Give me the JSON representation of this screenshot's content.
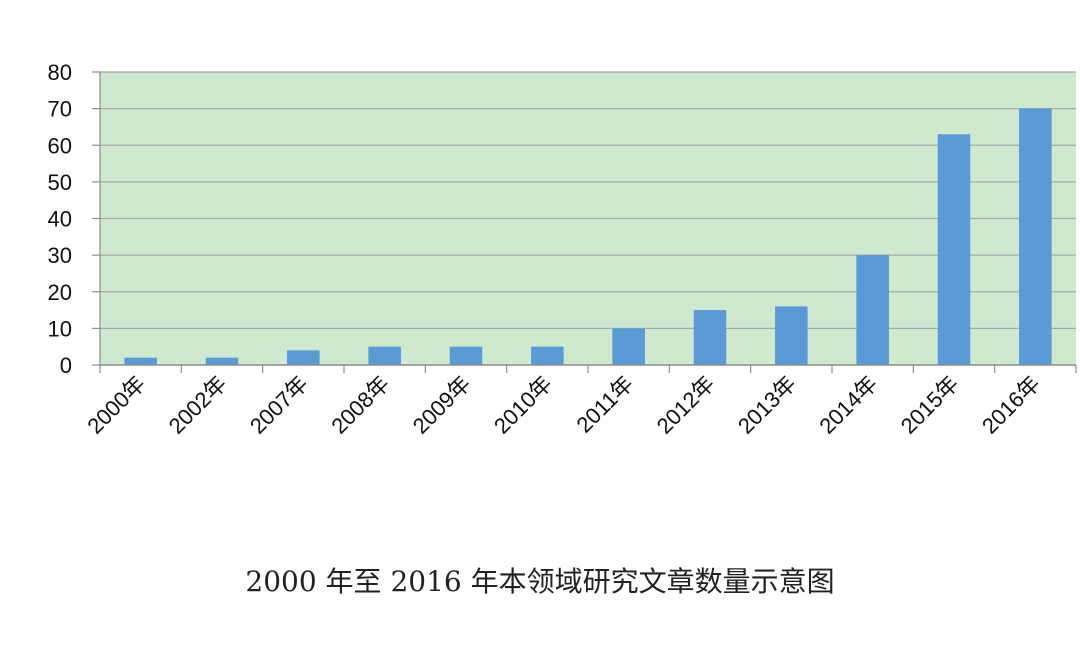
{
  "chart_data": {
    "type": "bar",
    "title": "2000 年至 2016 年本领域研究文章数量示意图",
    "categories": [
      "2000年",
      "2002年",
      "2007年",
      "2008年",
      "2009年",
      "2010年",
      "2011年",
      "2012年",
      "2013年",
      "2014年",
      "2015年",
      "2016年"
    ],
    "values": [
      2,
      2,
      4,
      5,
      5,
      5,
      10,
      15,
      16,
      30,
      63,
      70
    ],
    "ylim": [
      0,
      80
    ],
    "yticks": [
      0,
      10,
      20,
      30,
      40,
      50,
      60,
      70,
      80
    ],
    "grid": true,
    "legend": "none",
    "colors": {
      "bar": "#5b9bd5",
      "plot_background": "#cfe9d1",
      "gridline": "#a8a8a8",
      "axis": "#8c8c8c"
    }
  }
}
